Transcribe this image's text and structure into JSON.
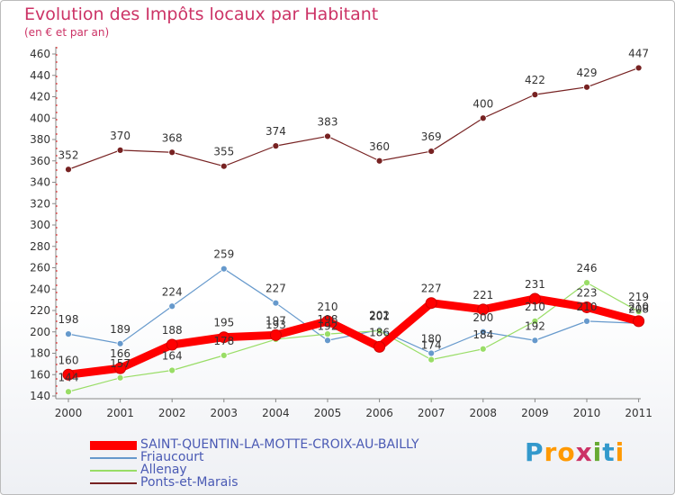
{
  "header": {
    "title": "Evolution des Impôts locaux par Habitant",
    "subtitle": "(en € et par an)"
  },
  "chart_data": {
    "type": "line",
    "title": "Evolution des Impôts locaux par Habitant",
    "subtitle": "(en € et par an)",
    "xlabel": "",
    "ylabel": "",
    "ylim": [
      140,
      460
    ],
    "y_ticks": [
      140,
      160,
      180,
      200,
      220,
      240,
      260,
      280,
      300,
      320,
      340,
      360,
      380,
      400,
      420,
      440,
      460
    ],
    "grid": false,
    "legend_position": "bottom-left",
    "categories": [
      "2000",
      "2001",
      "2002",
      "2003",
      "2004",
      "2005",
      "2006",
      "2007",
      "2008",
      "2009",
      "2010",
      "2011"
    ],
    "series": [
      {
        "name": "SAINT-QUENTIN-LA-MOTTE-CROIX-AU-BAILLY",
        "color": "#ff0000",
        "values": [
          160,
          166,
          188,
          195,
          197,
          210,
          186,
          227,
          221,
          231,
          223,
          210
        ],
        "labels": [
          "160",
          "166",
          "188",
          "195",
          "197",
          "210",
          "186",
          "227",
          "221",
          "231",
          "223",
          "210"
        ],
        "emphasis": "bold"
      },
      {
        "name": "Friaucourt",
        "color": "#6699cc",
        "values": [
          198,
          189,
          224,
          259,
          227,
          192,
          202,
          180,
          200,
          192,
          210,
          208
        ],
        "labels": [
          "198",
          "189",
          "224",
          "259",
          "227",
          "192",
          "202",
          "180",
          "200",
          "192",
          "210",
          "208"
        ],
        "emphasis": "thin"
      },
      {
        "name": "Allenay",
        "color": "#99dd66",
        "values": [
          144,
          157,
          164,
          178,
          193,
          198,
          201,
          174,
          184,
          210,
          246,
          219
        ],
        "labels": [
          "144",
          "157",
          "164",
          "178",
          "193",
          "198",
          "201",
          "174",
          "184",
          "210",
          "246",
          "219"
        ],
        "emphasis": "thin"
      },
      {
        "name": "Ponts-et-Marais",
        "color": "#772222",
        "values": [
          352,
          370,
          368,
          355,
          374,
          383,
          360,
          369,
          400,
          422,
          429,
          447
        ],
        "labels": [
          "352",
          "370",
          "368",
          "355",
          "374",
          "383",
          "360",
          "369",
          "400",
          "422",
          "429",
          "447"
        ],
        "emphasis": "thin"
      }
    ]
  },
  "logo": {
    "text": "Proxiti",
    "letters": [
      "P",
      "r",
      "o",
      "x",
      "i",
      "t",
      "i"
    ],
    "colors": [
      "#3399cc",
      "#ff9900",
      "#ff9900",
      "#cc3366",
      "#66aa33",
      "#3399cc",
      "#ff9900"
    ]
  }
}
